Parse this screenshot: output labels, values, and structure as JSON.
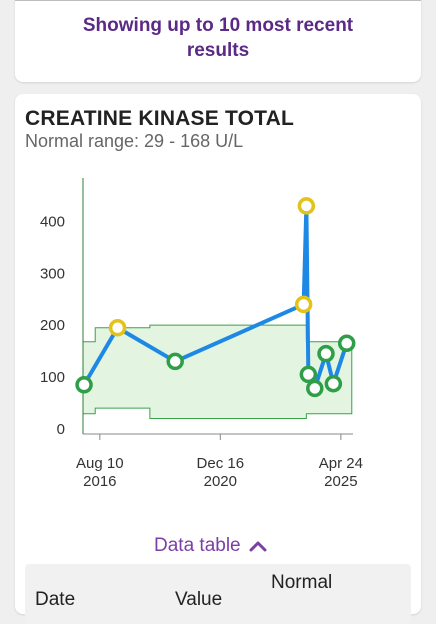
{
  "banner": {
    "text": "Showing up to 10 most recent results"
  },
  "chart_card": {
    "title": "CREATINE KINASE TOTAL",
    "subtitle": "Normal range: 29 - 168 U/L",
    "data_table_label": "Data table"
  },
  "table": {
    "headers": [
      "Date",
      "Value",
      "Normal"
    ]
  },
  "colors": {
    "line": "#1e88e5",
    "normal_point": "#2e9e48",
    "abnormal_point": "#e3c21a",
    "range_fill": "#e3f5e1",
    "range_stroke": "#3aa14a",
    "axis": "#2e7d32",
    "accent": "#7b3fa6"
  },
  "chart_data": {
    "type": "line",
    "title": "CREATINE KINASE TOTAL",
    "xlabel": "",
    "ylabel": "",
    "ylim": [
      -10,
      480
    ],
    "y_ticks": [
      0,
      100,
      200,
      300,
      400
    ],
    "x_range": [
      "2016-01-01",
      "2025-10-01"
    ],
    "x_ticks": [
      {
        "date": "2016-08-10",
        "label_line1": "Aug 10",
        "label_line2": "2016"
      },
      {
        "date": "2020-12-16",
        "label_line1": "Dec 16",
        "label_line2": "2020"
      },
      {
        "date": "2025-04-24",
        "label_line1": "Apr 24",
        "label_line2": "2025"
      }
    ],
    "series": [
      {
        "points": [
          {
            "date": "2016-01-15",
            "value": 85,
            "abnormal": false
          },
          {
            "date": "2017-04-01",
            "value": 195,
            "abnormal": true
          },
          {
            "date": "2019-05-01",
            "value": 130,
            "abnormal": false
          },
          {
            "date": "2023-12-20",
            "value": 240,
            "abnormal": true
          },
          {
            "date": "2024-01-25",
            "value": 430,
            "abnormal": true
          },
          {
            "date": "2024-02-20",
            "value": 105,
            "abnormal": false
          },
          {
            "date": "2024-05-15",
            "value": 78,
            "abnormal": false
          },
          {
            "date": "2024-10-10",
            "value": 145,
            "abnormal": false
          },
          {
            "date": "2025-01-15",
            "value": 87,
            "abnormal": false
          },
          {
            "date": "2025-07-10",
            "value": 165,
            "abnormal": false
          }
        ]
      }
    ],
    "normal_range_steps": [
      {
        "from": "2016-01-01",
        "to": "2016-06-10",
        "low": 29,
        "high": 168
      },
      {
        "from": "2016-06-10",
        "to": "2018-06-01",
        "low": 40,
        "high": 195
      },
      {
        "from": "2018-06-01",
        "to": "2024-01-25",
        "low": 20,
        "high": 200
      },
      {
        "from": "2024-01-25",
        "to": "2025-09-15",
        "low": 29,
        "high": 168
      }
    ]
  }
}
